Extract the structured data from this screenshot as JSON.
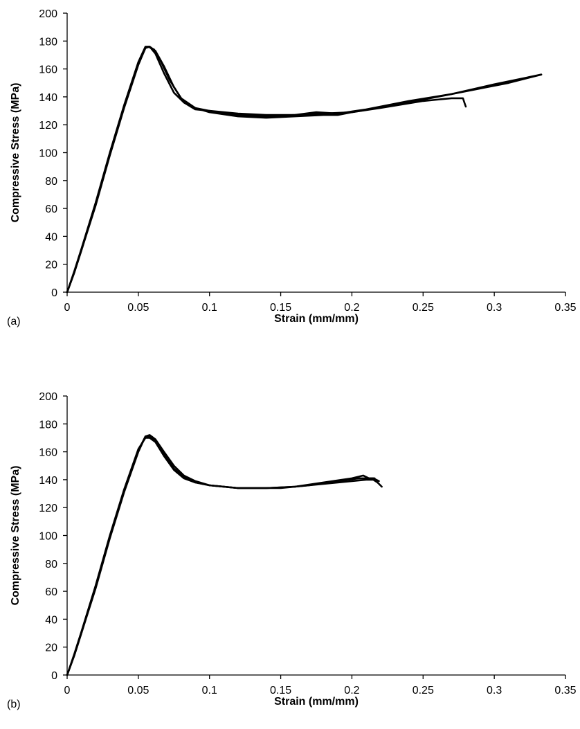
{
  "chart_data": [
    {
      "type": "line",
      "panel_label": "(a)",
      "xlabel": "Strain (mm/mm)",
      "ylabel": "Compressive Stress (MPa)",
      "xlim": [
        0,
        0.35
      ],
      "ylim": [
        0,
        200
      ],
      "x_ticks": [
        "0",
        "0.05",
        "0.1",
        "0.15",
        "0.2",
        "0.25",
        "0.3",
        "0.35"
      ],
      "y_ticks": [
        "0",
        "20",
        "40",
        "60",
        "80",
        "100",
        "120",
        "140",
        "160",
        "180",
        "200"
      ],
      "grid": false,
      "legend": "none",
      "series": [
        {
          "points": [
            [
              0,
              0
            ],
            [
              0.005,
              14
            ],
            [
              0.01,
              30
            ],
            [
              0.02,
              62
            ],
            [
              0.03,
              98
            ],
            [
              0.04,
              132
            ],
            [
              0.05,
              163
            ],
            [
              0.055,
              175
            ],
            [
              0.058,
              176
            ],
            [
              0.062,
              173
            ],
            [
              0.068,
              162
            ],
            [
              0.075,
              147
            ],
            [
              0.082,
              136
            ],
            [
              0.09,
              131
            ],
            [
              0.1,
              130
            ],
            [
              0.12,
              128
            ],
            [
              0.14,
              127
            ],
            [
              0.16,
              127
            ],
            [
              0.18,
              128
            ],
            [
              0.2,
              129
            ],
            [
              0.22,
              132
            ],
            [
              0.25,
              137
            ],
            [
              0.27,
              139
            ],
            [
              0.278,
              139
            ],
            [
              0.279,
              136
            ],
            [
              0.28,
              133
            ]
          ]
        },
        {
          "points": [
            [
              0,
              0
            ],
            [
              0.005,
              15
            ],
            [
              0.01,
              31
            ],
            [
              0.02,
              64
            ],
            [
              0.03,
              100
            ],
            [
              0.04,
              134
            ],
            [
              0.05,
              165
            ],
            [
              0.055,
              176
            ],
            [
              0.058,
              176
            ],
            [
              0.062,
              171
            ],
            [
              0.068,
              157
            ],
            [
              0.075,
              143
            ],
            [
              0.082,
              136
            ],
            [
              0.09,
              132
            ],
            [
              0.1,
              129
            ],
            [
              0.12,
              126
            ],
            [
              0.14,
              125
            ],
            [
              0.16,
              126
            ],
            [
              0.18,
              127
            ],
            [
              0.19,
              127
            ],
            [
              0.2,
              129
            ],
            [
              0.23,
              134
            ],
            [
              0.26,
              140
            ],
            [
              0.29,
              146
            ],
            [
              0.31,
              150
            ],
            [
              0.333,
              156
            ]
          ]
        },
        {
          "points": [
            [
              0,
              0
            ],
            [
              0.005,
              14
            ],
            [
              0.01,
              30
            ],
            [
              0.02,
              63
            ],
            [
              0.03,
              99
            ],
            [
              0.04,
              133
            ],
            [
              0.05,
              164
            ],
            [
              0.055,
              175
            ],
            [
              0.057,
              176
            ],
            [
              0.061,
              174
            ],
            [
              0.066,
              165
            ],
            [
              0.072,
              152
            ],
            [
              0.08,
              139
            ],
            [
              0.09,
              132
            ],
            [
              0.1,
              130
            ],
            [
              0.12,
              127
            ],
            [
              0.14,
              126
            ],
            [
              0.16,
              127
            ],
            [
              0.175,
              129
            ],
            [
              0.19,
              128
            ],
            [
              0.21,
              131
            ],
            [
              0.24,
              137
            ],
            [
              0.27,
              142
            ],
            [
              0.3,
              149
            ],
            [
              0.333,
              156
            ]
          ]
        }
      ]
    },
    {
      "type": "line",
      "panel_label": "(b)",
      "xlabel": "Strain (mm/mm)",
      "ylabel": "Compressive Stress (MPa)",
      "xlim": [
        0,
        0.35
      ],
      "ylim": [
        0,
        200
      ],
      "x_ticks": [
        "0",
        "0.05",
        "0.1",
        "0.15",
        "0.2",
        "0.25",
        "0.3",
        "0.35"
      ],
      "y_ticks": [
        "0",
        "20",
        "40",
        "60",
        "80",
        "100",
        "120",
        "140",
        "160",
        "180",
        "200"
      ],
      "grid": false,
      "legend": "none",
      "series": [
        {
          "points": [
            [
              0,
              0
            ],
            [
              0.005,
              14
            ],
            [
              0.01,
              30
            ],
            [
              0.02,
              62
            ],
            [
              0.03,
              98
            ],
            [
              0.04,
              131
            ],
            [
              0.05,
              160
            ],
            [
              0.055,
              171
            ],
            [
              0.058,
              172
            ],
            [
              0.062,
              169
            ],
            [
              0.068,
              160
            ],
            [
              0.075,
              150
            ],
            [
              0.082,
              143
            ],
            [
              0.09,
              139
            ],
            [
              0.1,
              136
            ],
            [
              0.12,
              134
            ],
            [
              0.14,
              134
            ],
            [
              0.16,
              135
            ],
            [
              0.18,
              137
            ],
            [
              0.2,
              139
            ],
            [
              0.21,
              140
            ],
            [
              0.215,
              140
            ],
            [
              0.218,
              138
            ],
            [
              0.221,
              135
            ]
          ]
        },
        {
          "points": [
            [
              0,
              0
            ],
            [
              0.005,
              15
            ],
            [
              0.01,
              31
            ],
            [
              0.02,
              64
            ],
            [
              0.03,
              100
            ],
            [
              0.04,
              133
            ],
            [
              0.05,
              162
            ],
            [
              0.055,
              170
            ],
            [
              0.058,
              170
            ],
            [
              0.062,
              167
            ],
            [
              0.068,
              157
            ],
            [
              0.075,
              147
            ],
            [
              0.082,
              141
            ],
            [
              0.09,
              138
            ],
            [
              0.1,
              136
            ],
            [
              0.12,
              134
            ],
            [
              0.14,
              134
            ],
            [
              0.16,
              135
            ],
            [
              0.18,
              138
            ],
            [
              0.2,
              141
            ],
            [
              0.208,
              143
            ],
            [
              0.212,
              141
            ],
            [
              0.216,
              141
            ]
          ]
        },
        {
          "points": [
            [
              0,
              0
            ],
            [
              0.005,
              14
            ],
            [
              0.01,
              30
            ],
            [
              0.02,
              63
            ],
            [
              0.03,
              99
            ],
            [
              0.04,
              132
            ],
            [
              0.05,
              161
            ],
            [
              0.055,
              171
            ],
            [
              0.058,
              171
            ],
            [
              0.062,
              168
            ],
            [
              0.068,
              158
            ],
            [
              0.075,
              148
            ],
            [
              0.082,
              142
            ],
            [
              0.09,
              138
            ],
            [
              0.1,
              136
            ],
            [
              0.12,
              134
            ],
            [
              0.13,
              134
            ],
            [
              0.15,
              134
            ],
            [
              0.17,
              136
            ],
            [
              0.19,
              139
            ],
            [
              0.205,
              141
            ],
            [
              0.215,
              141
            ],
            [
              0.219,
              139
            ]
          ]
        }
      ]
    }
  ]
}
